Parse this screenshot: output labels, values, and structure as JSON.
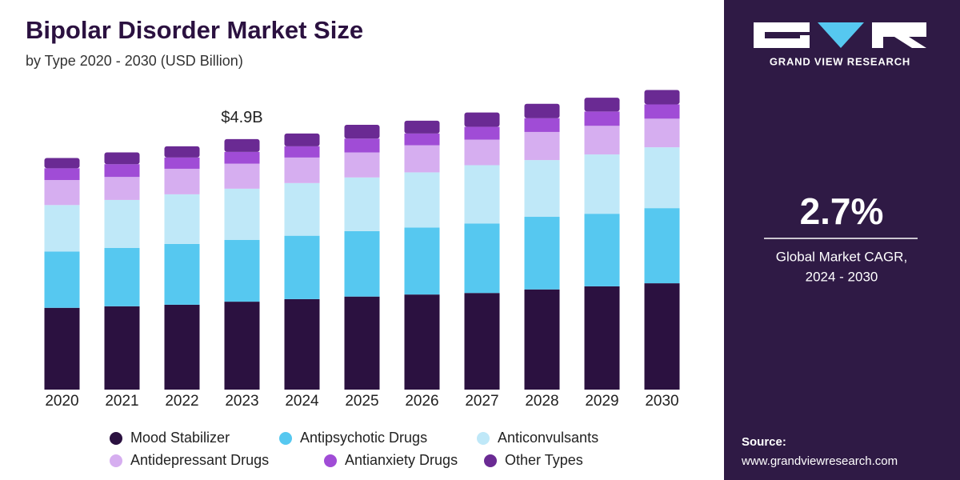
{
  "chart_data": {
    "type": "stacked_bar",
    "title": "Bipolar Disorder Market Size",
    "subtitle": "by Type 2020 - 2030 (USD Billion)",
    "categories": [
      "2020",
      "2021",
      "2022",
      "2023",
      "2024",
      "2025",
      "2026",
      "2027",
      "2028",
      "2029",
      "2030"
    ],
    "series": [
      {
        "name": "Mood Stabilizer",
        "color": "#2b1140",
        "values": [
          1.6,
          1.63,
          1.66,
          1.72,
          1.77,
          1.82,
          1.86,
          1.89,
          1.96,
          2.02,
          2.08
        ]
      },
      {
        "name": "Antipsychotic Drugs",
        "color": "#56c8f0",
        "values": [
          1.1,
          1.14,
          1.19,
          1.21,
          1.24,
          1.28,
          1.31,
          1.36,
          1.42,
          1.42,
          1.47
        ]
      },
      {
        "name": "Anticonvulsants",
        "color": "#bfe8f8",
        "values": [
          0.91,
          0.94,
          0.97,
          1.0,
          1.03,
          1.05,
          1.08,
          1.14,
          1.11,
          1.16,
          1.19
        ]
      },
      {
        "name": "Antidepressant Drugs",
        "color": "#d6aef0",
        "values": [
          0.49,
          0.45,
          0.5,
          0.49,
          0.5,
          0.49,
          0.53,
          0.5,
          0.55,
          0.56,
          0.56
        ]
      },
      {
        "name": "Antianxiety Drugs",
        "color": "#a04cd6",
        "values": [
          0.23,
          0.25,
          0.22,
          0.23,
          0.22,
          0.27,
          0.23,
          0.25,
          0.27,
          0.28,
          0.28
        ]
      },
      {
        "name": "Other Types",
        "color": "#6a2a93",
        "values": [
          0.2,
          0.23,
          0.22,
          0.25,
          0.25,
          0.27,
          0.25,
          0.28,
          0.28,
          0.27,
          0.28
        ]
      }
    ],
    "annotations": [
      {
        "x": "2023",
        "text": "$4.9B"
      }
    ]
  },
  "panel": {
    "brand": "GRAND VIEW RESEARCH",
    "cagr": "2.7%",
    "cagr_label": [
      "Global Market CAGR,",
      "2024 - 2030"
    ],
    "source_label": "Source:",
    "source_url": "www.grandviewresearch.com"
  }
}
